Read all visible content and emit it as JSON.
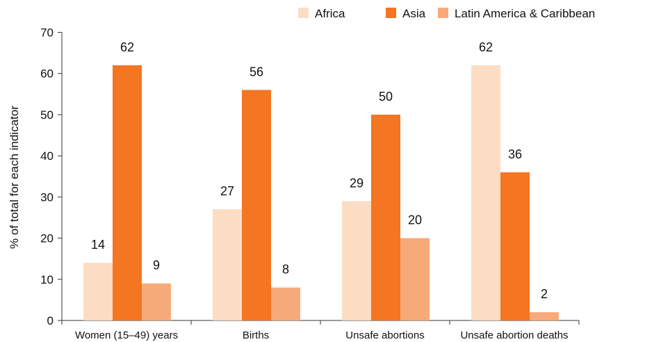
{
  "chart_data": {
    "type": "bar",
    "title": "",
    "xlabel": "",
    "ylabel": "% of total for each indicator",
    "ylim": [
      0,
      70
    ],
    "yticks": [
      0,
      10,
      20,
      30,
      40,
      50,
      60,
      70
    ],
    "categories": [
      "Women (15–49) years",
      "Births",
      "Unsafe abortions",
      "Unsafe abortion deaths"
    ],
    "series": [
      {
        "name": "Africa",
        "color": "#FCDDC4",
        "values": [
          14,
          27,
          29,
          62
        ]
      },
      {
        "name": "Asia",
        "color": "#F47522",
        "values": [
          62,
          56,
          50,
          36
        ]
      },
      {
        "name": "Latin America & Caribbean",
        "color": "#F6AA7A",
        "values": [
          9,
          8,
          20,
          2
        ]
      }
    ],
    "data_labels": true,
    "legend_position": "top-right",
    "grid": false
  }
}
